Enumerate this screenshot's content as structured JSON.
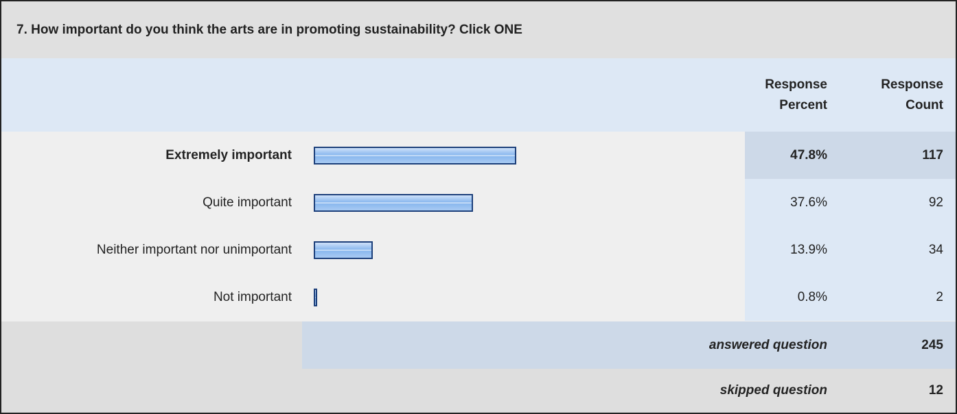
{
  "chart_data": {
    "type": "bar",
    "title": "7. How important do you think the arts are in promoting sustainability? Click ONE",
    "headers": [
      "Response Percent",
      "Response Count"
    ],
    "categories": [
      "Extremely important",
      "Quite important",
      "Neither important nor unimportant",
      "Not important"
    ],
    "values": [
      47.8,
      37.6,
      13.9,
      0.8
    ],
    "value_labels": [
      "47.8%",
      "37.6%",
      "13.9%",
      "0.8%"
    ],
    "counts": [
      117,
      92,
      34,
      2
    ],
    "answered": {
      "label": "answered question",
      "value": 245
    },
    "skipped": {
      "label": "skipped question",
      "value": 12
    },
    "color": "#8ab8ee"
  }
}
